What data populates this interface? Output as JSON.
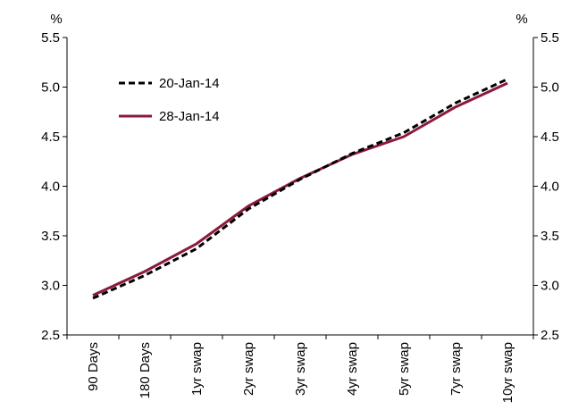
{
  "chart_data": {
    "type": "line",
    "title": "",
    "xlabel": "",
    "ylabel_left": "%",
    "ylabel_right": "%",
    "ylim": [
      2.5,
      5.5
    ],
    "yticks": [
      "2.5",
      "3.0",
      "3.5",
      "4.0",
      "4.5",
      "5.0",
      "5.5"
    ],
    "grid": false,
    "legend_position": "top-left",
    "categories": [
      "90 Days",
      "180 Days",
      "1yr swap",
      "2yr swap",
      "3yr swap",
      "4yr swap",
      "5yr swap",
      "7yr swap",
      "10yr swap"
    ],
    "series": [
      {
        "name": "20-Jan-14",
        "style": "dashed",
        "color": "#000000",
        "values": [
          2.87,
          3.1,
          3.37,
          3.77,
          4.07,
          4.33,
          4.54,
          4.84,
          5.08
        ]
      },
      {
        "name": "28-Jan-14",
        "style": "solid",
        "color": "#8B1A3A",
        "values": [
          2.9,
          3.14,
          3.42,
          3.8,
          4.08,
          4.32,
          4.5,
          4.8,
          5.04
        ]
      }
    ]
  }
}
